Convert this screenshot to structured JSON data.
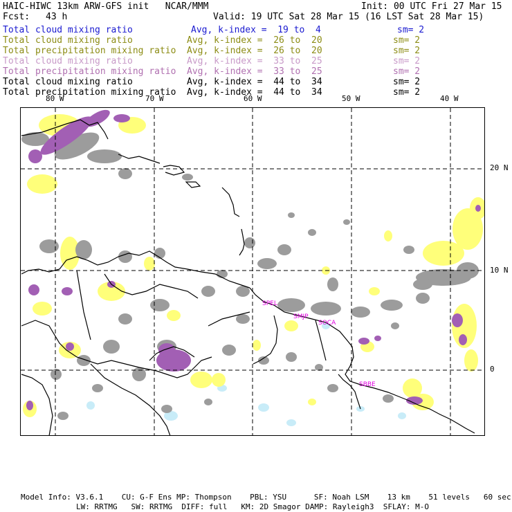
{
  "header": {
    "title": "HAIC-HIWC 13km ARW-GFS init   NCAR/MMM",
    "init": "Init: 00 UTC Fri 27 Mar 15",
    "fcst_label": "Fcst:",
    "fcst_value": "43 h",
    "valid": "Valid: 19 UTC Sat 28 Mar 15 (16 LST Sat 28 Mar 15)"
  },
  "legend": [
    {
      "field": "Total cloud mixing ratio",
      "range": "Avg, k-index =  19 to  4",
      "sm": "sm= 2",
      "color": "#1a1ad0"
    },
    {
      "field": "Total cloud mixing ratio",
      "range": "Avg, k-index =  26 to  20",
      "sm": "sm= 2",
      "color": "#8c8c14"
    },
    {
      "field": "Total precipitation mixing ratio",
      "range": "Avg, k-index =  26 to  20",
      "sm": "sm= 2",
      "color": "#8c8c14"
    },
    {
      "field": "Total cloud mixing ratio",
      "range": "Avg, k-index =  33 to  25",
      "sm": "sm= 2",
      "color": "#c89ac8"
    },
    {
      "field": "Total precipitation mixing ratio",
      "range": "Avg, k-index =  33 to  25",
      "sm": "sm= 2",
      "color": "#b070b0"
    },
    {
      "field": "Total cloud mixing ratio",
      "range": "Avg, k-index =  44 to  34",
      "sm": "sm= 2",
      "color": "#000000"
    },
    {
      "field": "Total precipitation mixing ratio",
      "range": "Avg, k-index =  44 to  34",
      "sm": "sm= 2",
      "color": "#000000"
    }
  ],
  "map": {
    "lon_labels": [
      "80 W",
      "70 W",
      "60 W",
      "50 W",
      "40 W"
    ],
    "lat_labels": [
      "20 N",
      "10 N",
      "0"
    ],
    "stations": [
      "SPEL",
      "SMJP",
      "SOCA",
      "SBBE"
    ],
    "colors": {
      "gray": "#9c9c9c",
      "yellow": "#ffff7a",
      "purple": "#a25fb4",
      "lightblue": "#c8ecf8",
      "station": "#e000e0"
    }
  },
  "footer": {
    "line1": "Model Info: V3.6.1    CU: G-F Ens MP: Thompson    PBL: YSU      SF: Noah LSM    13 km    51 levels   60 sec",
    "line2": "LW: RRTMG   SW: RRTMG  DIFF: full   KM: 2D Smagor DAMP: Rayleigh3  SFLAY: M-O"
  }
}
